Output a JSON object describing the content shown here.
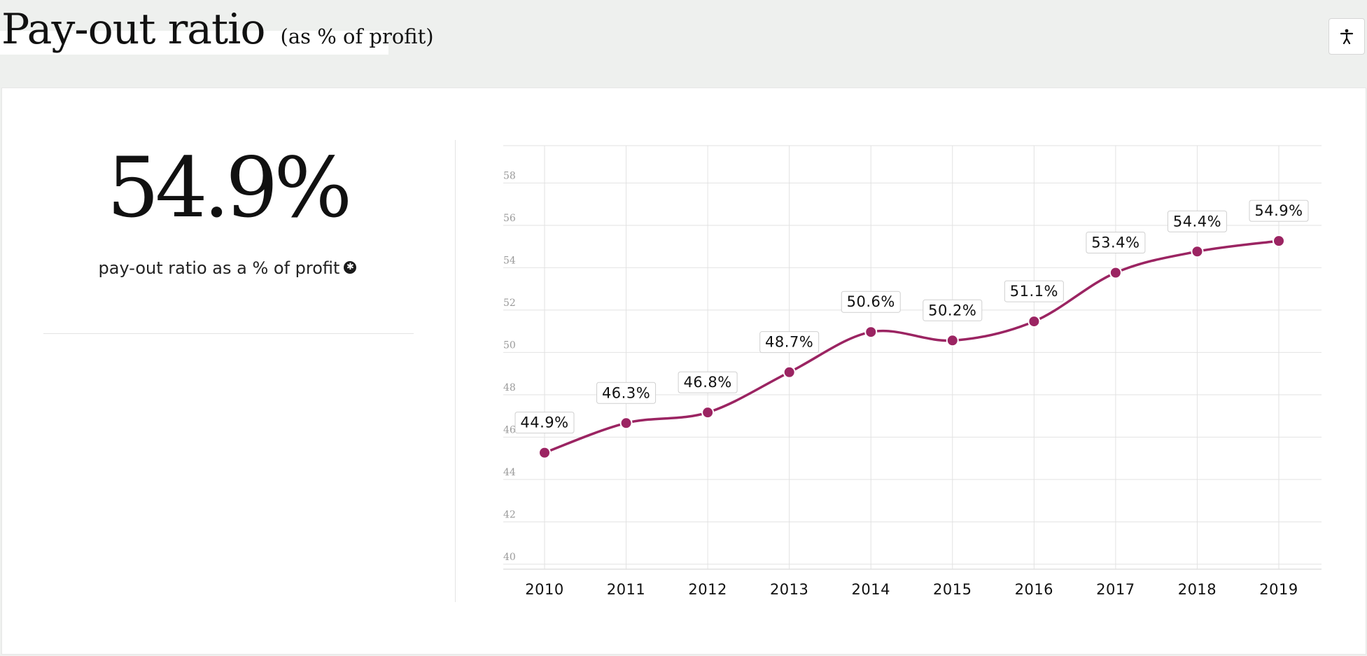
{
  "header": {
    "title": "Pay-out ratio",
    "subtitle": "(as % of profit)",
    "accessibility_icon": "accessibility-icon"
  },
  "kpi": {
    "value": "54.9%",
    "caption": "pay-out ratio as a % of profit",
    "info_icon": "info-icon"
  },
  "colors": {
    "series": "#9b2462",
    "grid": "#e2e2e2",
    "panel": "#ffffff",
    "header_bg": "#eef0ee"
  },
  "chart_data": {
    "type": "line",
    "x": [
      "2010",
      "2011",
      "2012",
      "2013",
      "2014",
      "2015",
      "2016",
      "2017",
      "2018",
      "2019"
    ],
    "series": [
      {
        "values": [
          44.9,
          46.3,
          46.8,
          48.7,
          50.6,
          50.2,
          51.1,
          53.4,
          54.4,
          54.9
        ],
        "labels": [
          "44.9%",
          "46.3%",
          "46.8%",
          "48.7%",
          "50.6%",
          "50.2%",
          "51.1%",
          "53.4%",
          "54.4%",
          "54.9%"
        ]
      }
    ],
    "yticks": [
      40,
      42,
      44,
      46,
      48,
      50,
      52,
      54,
      56,
      58
    ],
    "ylim": [
      39.4,
      59.4
    ],
    "grid": true,
    "smooth": true
  }
}
